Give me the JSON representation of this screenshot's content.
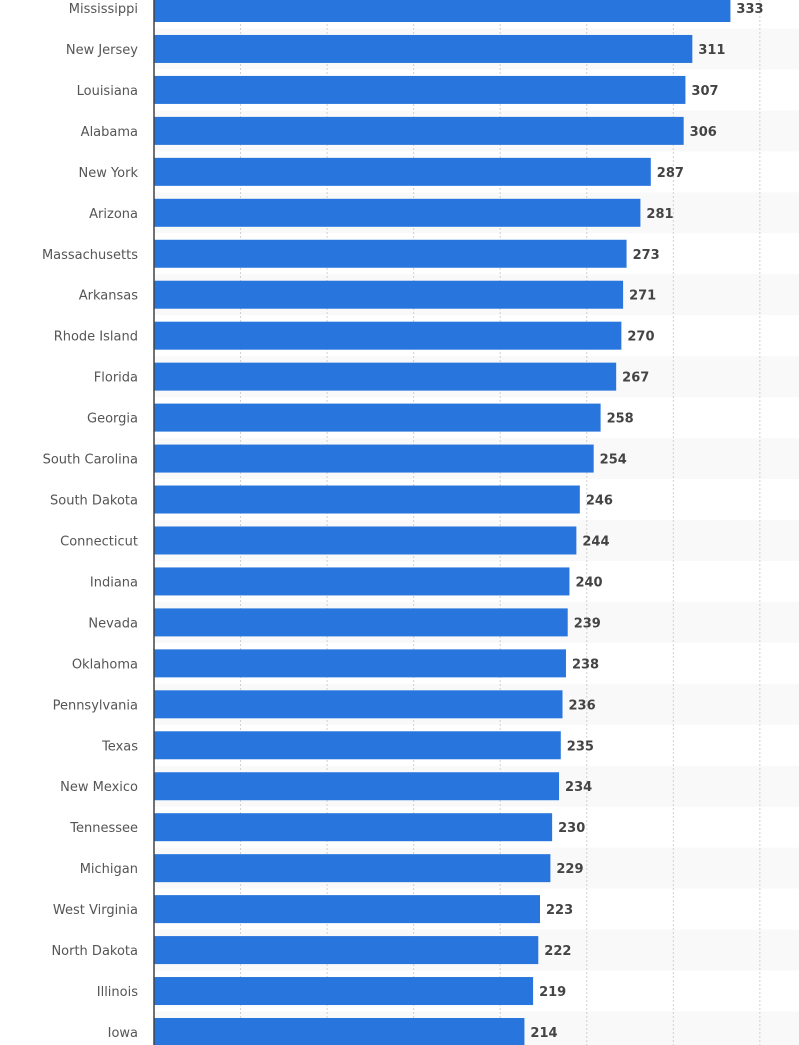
{
  "chart_data": {
    "type": "bar",
    "orientation": "horizontal",
    "title": "",
    "xlabel": "",
    "ylabel": "",
    "xlim": [
      0,
      373
    ],
    "grid_step": 50,
    "grid": true,
    "colors": {
      "bar": "#2875dd",
      "stripe": "#f9f9f9",
      "axis": "#444444",
      "grid": "#d0d0d0"
    },
    "categories": [
      "Mississippi",
      "New Jersey",
      "Louisiana",
      "Alabama",
      "New York",
      "Arizona",
      "Massachusetts",
      "Arkansas",
      "Rhode Island",
      "Florida",
      "Georgia",
      "South Carolina",
      "South Dakota",
      "Connecticut",
      "Indiana",
      "Nevada",
      "Oklahoma",
      "Pennsylvania",
      "Texas",
      "New Mexico",
      "Tennessee",
      "Michigan",
      "West Virginia",
      "North Dakota",
      "Illinois",
      "Iowa"
    ],
    "values": [
      333,
      311,
      307,
      306,
      287,
      281,
      273,
      271,
      270,
      267,
      258,
      254,
      246,
      244,
      240,
      239,
      238,
      236,
      235,
      234,
      230,
      229,
      223,
      222,
      219,
      214
    ]
  }
}
